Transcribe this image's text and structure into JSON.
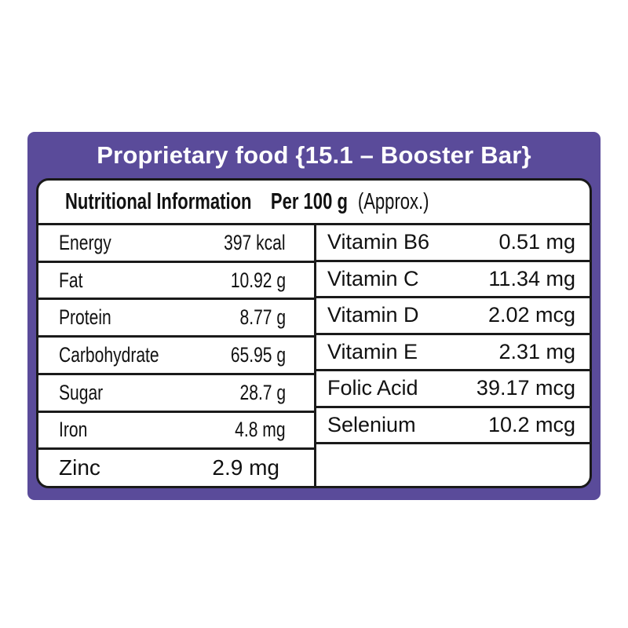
{
  "banner": {
    "title": "Proprietary food {15.1 – Booster Bar}"
  },
  "table": {
    "header": {
      "title": "Nutritional Information",
      "per": "Per 100 g",
      "approx": "(Approx.)"
    },
    "left_rows": [
      {
        "label": "Energy",
        "value": "397 kcal"
      },
      {
        "label": "Fat",
        "value": "10.92 g"
      },
      {
        "label": "Protein",
        "value": "8.77 g"
      },
      {
        "label": "Carbohydrate",
        "value": "65.95 g"
      },
      {
        "label": "Sugar",
        "value": "28.7 g"
      },
      {
        "label": "Iron",
        "value": "4.8 mg"
      },
      {
        "label": "Zinc",
        "value": "2.9 mg"
      }
    ],
    "right_rows": [
      {
        "label": "Vitamin B6",
        "value": "0.51 mg"
      },
      {
        "label": "Vitamin C",
        "value": "11.34 mg"
      },
      {
        "label": "Vitamin D",
        "value": "2.02 mcg"
      },
      {
        "label": "Vitamin E",
        "value": "2.31 mg"
      },
      {
        "label": "Folic Acid",
        "value": "39.17 mcg"
      },
      {
        "label": "Selenium",
        "value": "10.2 mcg"
      }
    ]
  },
  "colors": {
    "accent_purple": "#5a4b9a",
    "border_black": "#1a1a1a",
    "background": "#ffffff",
    "title_text": "#ffffff"
  }
}
